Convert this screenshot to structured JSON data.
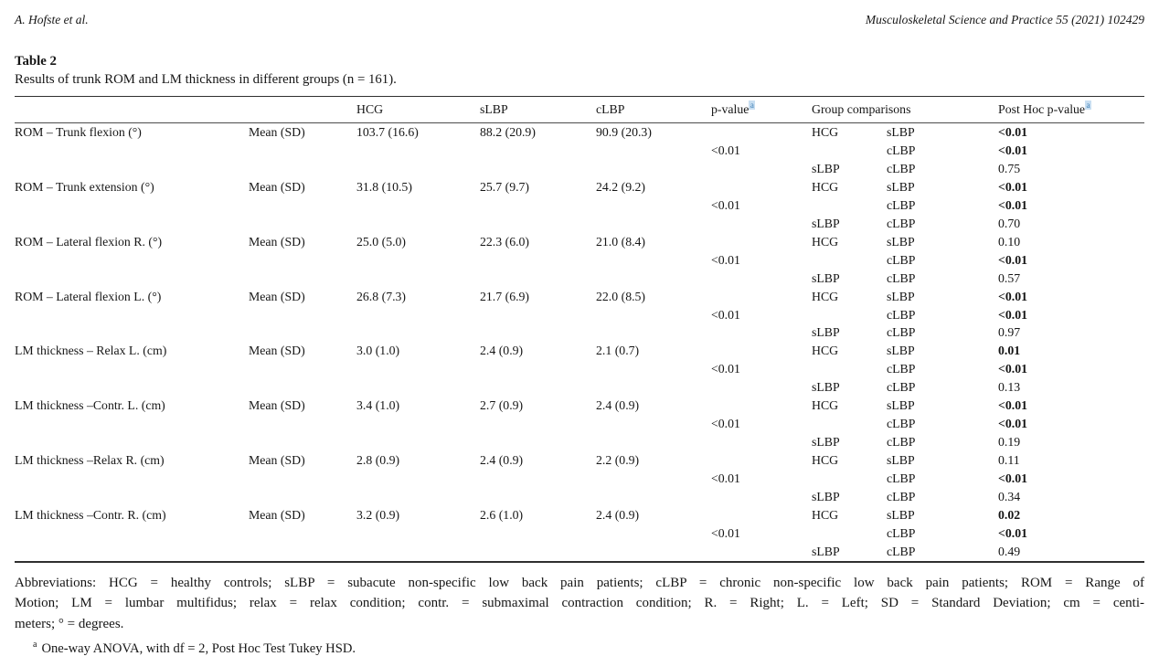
{
  "page_header": {
    "authors": "A. Hofste et al.",
    "journal": "Musculoskeletal Science and Practice 55 (2021) 102429"
  },
  "table_title": "Table 2",
  "table_caption": "Results of trunk ROM and LM thickness in different groups (n = 161).",
  "columns": {
    "hcg": "HCG",
    "slbp": "sLBP",
    "clbp": "cLBP",
    "p_value": "p-value",
    "p_value_sup": "a",
    "group_comparisons": "Group comparisons",
    "post_hoc": "Post Hoc p-value",
    "post_hoc_sup": "a"
  },
  "measures": [
    {
      "name": "ROM – Trunk flexion (°)",
      "stat": "Mean (SD)",
      "hcg": "103.7 (16.6)",
      "slbp": "88.2 (20.9)",
      "clbp": "90.9 (20.3)",
      "p_value": "<0.01",
      "comparisons": [
        {
          "g1": "HCG",
          "g2": "sLBP",
          "p": "<0.01",
          "bold": true
        },
        {
          "g1": "",
          "g2": "cLBP",
          "p": "<0.01",
          "bold": true
        },
        {
          "g1": "sLBP",
          "g2": "cLBP",
          "p": "0.75",
          "bold": false
        }
      ]
    },
    {
      "name": "ROM – Trunk extension (°)",
      "stat": "Mean (SD)",
      "hcg": "31.8 (10.5)",
      "slbp": "25.7 (9.7)",
      "clbp": "24.2 (9.2)",
      "p_value": "<0.01",
      "comparisons": [
        {
          "g1": "HCG",
          "g2": "sLBP",
          "p": "<0.01",
          "bold": true
        },
        {
          "g1": "",
          "g2": "cLBP",
          "p": "<0.01",
          "bold": true
        },
        {
          "g1": "sLBP",
          "g2": "cLBP",
          "p": "0.70",
          "bold": false
        }
      ]
    },
    {
      "name": "ROM – Lateral flexion R. (°)",
      "stat": "Mean (SD)",
      "hcg": "25.0 (5.0)",
      "slbp": "22.3 (6.0)",
      "clbp": "21.0 (8.4)",
      "p_value": "<0.01",
      "comparisons": [
        {
          "g1": "HCG",
          "g2": "sLBP",
          "p": "0.10",
          "bold": false
        },
        {
          "g1": "",
          "g2": "cLBP",
          "p": "<0.01",
          "bold": true
        },
        {
          "g1": "sLBP",
          "g2": "cLBP",
          "p": "0.57",
          "bold": false
        }
      ]
    },
    {
      "name": "ROM – Lateral flexion L. (°)",
      "stat": "Mean (SD)",
      "hcg": "26.8 (7.3)",
      "slbp": "21.7 (6.9)",
      "clbp": "22.0 (8.5)",
      "p_value": "<0.01",
      "comparisons": [
        {
          "g1": "HCG",
          "g2": "sLBP",
          "p": "<0.01",
          "bold": true
        },
        {
          "g1": "",
          "g2": "cLBP",
          "p": "<0.01",
          "bold": true
        },
        {
          "g1": "sLBP",
          "g2": "cLBP",
          "p": "0.97",
          "bold": false
        }
      ]
    },
    {
      "name": "LM thickness – Relax L. (cm)",
      "stat": "Mean (SD)",
      "hcg": "3.0 (1.0)",
      "slbp": "2.4 (0.9)",
      "clbp": "2.1 (0.7)",
      "p_value": "<0.01",
      "comparisons": [
        {
          "g1": "HCG",
          "g2": "sLBP",
          "p": "0.01",
          "bold": true
        },
        {
          "g1": "",
          "g2": "cLBP",
          "p": "<0.01",
          "bold": true
        },
        {
          "g1": "sLBP",
          "g2": "cLBP",
          "p": "0.13",
          "bold": false
        }
      ]
    },
    {
      "name": "LM thickness –Contr. L. (cm)",
      "stat": "Mean (SD)",
      "hcg": "3.4 (1.0)",
      "slbp": "2.7 (0.9)",
      "clbp": "2.4 (0.9)",
      "p_value": "<0.01",
      "comparisons": [
        {
          "g1": "HCG",
          "g2": "sLBP",
          "p": "<0.01",
          "bold": true
        },
        {
          "g1": "",
          "g2": "cLBP",
          "p": "<0.01",
          "bold": true
        },
        {
          "g1": "sLBP",
          "g2": "cLBP",
          "p": "0.19",
          "bold": false
        }
      ]
    },
    {
      "name": "LM thickness –Relax R. (cm)",
      "stat": "Mean (SD)",
      "hcg": "2.8 (0.9)",
      "slbp": "2.4 (0.9)",
      "clbp": "2.2 (0.9)",
      "p_value": "<0.01",
      "comparisons": [
        {
          "g1": "HCG",
          "g2": "sLBP",
          "p": "0.11",
          "bold": false
        },
        {
          "g1": "",
          "g2": "cLBP",
          "p": "<0.01",
          "bold": true
        },
        {
          "g1": "sLBP",
          "g2": "cLBP",
          "p": "0.34",
          "bold": false
        }
      ]
    },
    {
      "name": "LM thickness –Contr. R. (cm)",
      "stat": "Mean (SD)",
      "hcg": "3.2 (0.9)",
      "slbp": "2.6 (1.0)",
      "clbp": "2.4 (0.9)",
      "p_value": "<0.01",
      "comparisons": [
        {
          "g1": "HCG",
          "g2": "sLBP",
          "p": "0.02",
          "bold": true
        },
        {
          "g1": "",
          "g2": "cLBP",
          "p": "<0.01",
          "bold": true
        },
        {
          "g1": "sLBP",
          "g2": "cLBP",
          "p": "0.49",
          "bold": false
        }
      ]
    }
  ],
  "footer": {
    "lines": [
      "Abbreviations: HCG = healthy controls; sLBP = subacute non-specific low back pain patients; cLBP = chronic non-specific low back pain patients; ROM = Range of",
      "Motion; LM = lumbar multifidus; relax = relax condition; contr. = submaximal contraction condition; R. = Right; L. = Left; SD = Standard Deviation; cm = centi-",
      "meters; ° = degrees."
    ],
    "footnote_sup": "a",
    "footnote_text": "One-way ANOVA, with df = 2, Post Hoc Test Tukey HSD."
  },
  "colors": {
    "text": "#161616",
    "rule": "#2f2f2f",
    "link_blue": "#3d7fb5",
    "link_highlight": "#c8def1"
  }
}
